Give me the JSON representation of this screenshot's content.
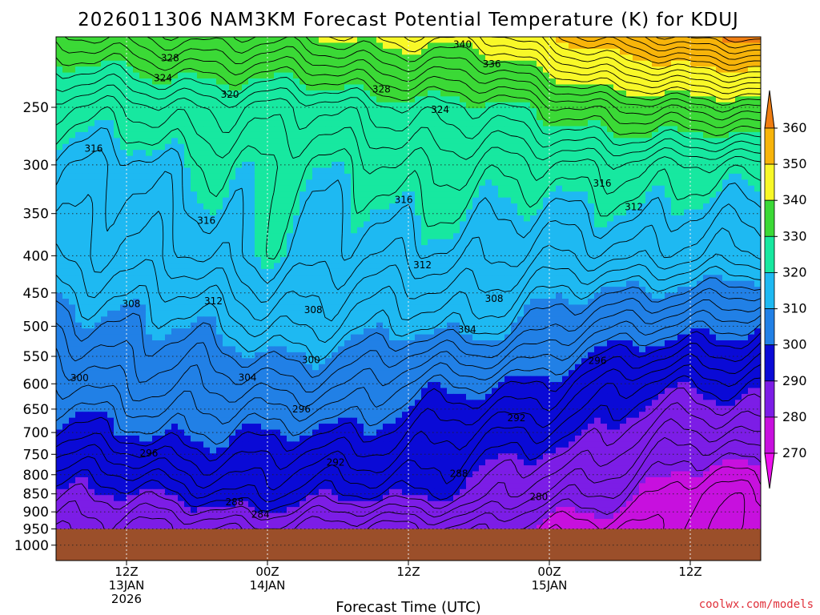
{
  "chart_data": {
    "type": "heatmap",
    "title": "2026011306 NAM3KM Forecast Potential Temperature (K) for KDUJ",
    "xlabel": "Forecast Time (UTC)",
    "ylabel": "",
    "x_ticks": [
      {
        "hours": 6,
        "lines": [
          "12Z",
          "13JAN",
          "2026"
        ]
      },
      {
        "hours": 18,
        "lines": [
          "00Z",
          "14JAN"
        ]
      },
      {
        "hours": 30,
        "lines": [
          "12Z"
        ]
      },
      {
        "hours": 42,
        "lines": [
          "00Z",
          "15JAN"
        ]
      },
      {
        "hours": 54,
        "lines": [
          "12Z"
        ]
      }
    ],
    "x_range_hours": [
      0,
      60
    ],
    "y_ticks": [
      250,
      300,
      350,
      400,
      450,
      500,
      550,
      600,
      650,
      700,
      750,
      800,
      850,
      900,
      950,
      1000
    ],
    "y_range_hPa": [
      200,
      1050
    ],
    "colorbar": {
      "labels": [
        "360",
        "350",
        "340",
        "330",
        "320",
        "310",
        "300",
        "290",
        "280",
        "270"
      ],
      "bins": [
        {
          "min": 355,
          "color": "#ef7d11"
        },
        {
          "min": 345,
          "color": "#f7b40a"
        },
        {
          "min": 335,
          "color": "#f8f828"
        },
        {
          "min": 325,
          "color": "#3bd936"
        },
        {
          "min": 315,
          "color": "#17e8a0"
        },
        {
          "min": 305,
          "color": "#1eb9f2"
        },
        {
          "min": 295,
          "color": "#2180e6"
        },
        {
          "min": 285,
          "color": "#0a0ad6"
        },
        {
          "min": 275,
          "color": "#7c1de6"
        },
        {
          "min": 265,
          "color": "#c710de"
        },
        {
          "min": 0,
          "color": "#ee10ee"
        }
      ],
      "top_triangle_color": "#ef7d11",
      "bottom_triangle_color": "#ee10ee"
    },
    "ground_color": "#9b4f2a",
    "ground_level_hPa": 950,
    "contour_interval": 2,
    "series": [
      {
        "name": "theta_profile_hour0",
        "pressure": [
          200,
          250,
          300,
          400,
          500,
          600,
          700,
          850,
          950
        ],
        "theta": [
          330,
          318,
          312,
          308,
          302,
          298,
          294,
          284,
          280
        ]
      },
      {
        "name": "theta_profile_hour18",
        "pressure": [
          200,
          250,
          300,
          400,
          500,
          600,
          700,
          850,
          950
        ],
        "theta": [
          334,
          320,
          316,
          314,
          308,
          302,
          296,
          288,
          280
        ]
      },
      {
        "name": "theta_profile_hour36",
        "pressure": [
          200,
          250,
          300,
          400,
          500,
          600,
          700,
          850,
          950
        ],
        "theta": [
          338,
          324,
          318,
          312,
          306,
          296,
          290,
          284,
          276
        ]
      },
      {
        "name": "theta_profile_hour54",
        "pressure": [
          200,
          250,
          300,
          400,
          500,
          600,
          700,
          850,
          950
        ],
        "theta": [
          356,
          332,
          318,
          310,
          296,
          286,
          280,
          272,
          270
        ]
      }
    ],
    "contour_labels": [
      {
        "text": "328",
        "hour": 9.7,
        "pressure": 214
      },
      {
        "text": "324",
        "hour": 9.1,
        "pressure": 228
      },
      {
        "text": "320",
        "hour": 14.8,
        "pressure": 240
      },
      {
        "text": "340",
        "hour": 34.6,
        "pressure": 205
      },
      {
        "text": "336",
        "hour": 37.1,
        "pressure": 218
      },
      {
        "text": "328",
        "hour": 27.7,
        "pressure": 236
      },
      {
        "text": "324",
        "hour": 32.7,
        "pressure": 252
      },
      {
        "text": "316",
        "hour": 3.2,
        "pressure": 285
      },
      {
        "text": "316",
        "hour": 12.8,
        "pressure": 358
      },
      {
        "text": "316",
        "hour": 29.6,
        "pressure": 335
      },
      {
        "text": "316",
        "hour": 46.5,
        "pressure": 318
      },
      {
        "text": "312",
        "hour": 49.2,
        "pressure": 343
      },
      {
        "text": "312",
        "hour": 31.2,
        "pressure": 412
      },
      {
        "text": "312",
        "hour": 13.4,
        "pressure": 462
      },
      {
        "text": "308",
        "hour": 6.4,
        "pressure": 466
      },
      {
        "text": "308",
        "hour": 21.9,
        "pressure": 475
      },
      {
        "text": "308",
        "hour": 37.3,
        "pressure": 458
      },
      {
        "text": "304",
        "hour": 35.0,
        "pressure": 505
      },
      {
        "text": "304",
        "hour": 16.3,
        "pressure": 588
      },
      {
        "text": "300",
        "hour": 2.0,
        "pressure": 589
      },
      {
        "text": "300",
        "hour": 21.7,
        "pressure": 556
      },
      {
        "text": "296",
        "hour": 46.1,
        "pressure": 558
      },
      {
        "text": "296",
        "hour": 20.9,
        "pressure": 650
      },
      {
        "text": "296",
        "hour": 7.9,
        "pressure": 748
      },
      {
        "text": "292",
        "hour": 39.2,
        "pressure": 669
      },
      {
        "text": "292",
        "hour": 23.8,
        "pressure": 770
      },
      {
        "text": "288",
        "hour": 34.3,
        "pressure": 797
      },
      {
        "text": "288",
        "hour": 15.2,
        "pressure": 873
      },
      {
        "text": "284",
        "hour": 17.4,
        "pressure": 907
      },
      {
        "text": "280",
        "hour": 41.1,
        "pressure": 858
      }
    ]
  },
  "credit": "coolwx.com/models"
}
